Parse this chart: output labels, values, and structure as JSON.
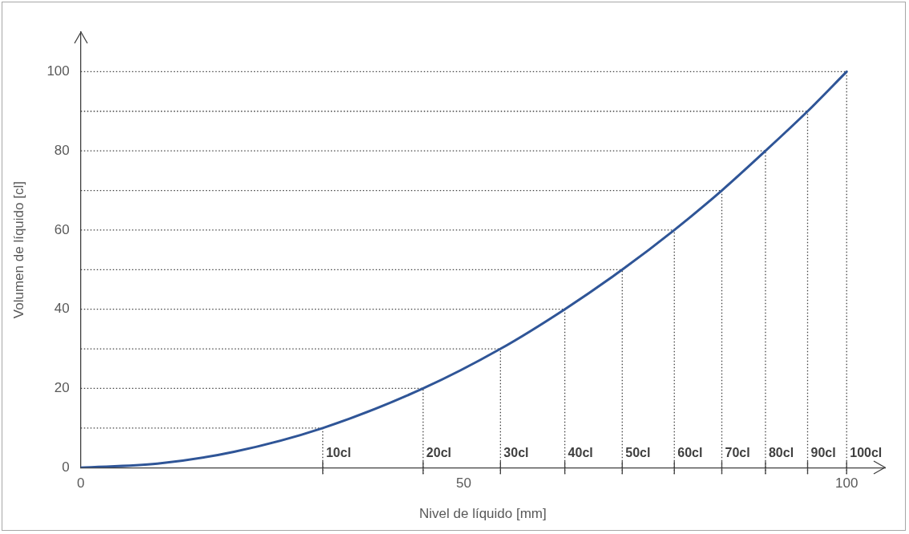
{
  "chart_data": {
    "type": "line",
    "xlabel": "Nivel de líquido [mm]",
    "ylabel": "Volumen de líquido [cl]",
    "x": [
      0,
      10,
      20,
      31.6,
      44.7,
      54.8,
      63.2,
      70.7,
      77.5,
      83.7,
      89.4,
      94.9,
      100
    ],
    "series": [
      {
        "color": "#2f5597",
        "values": [
          0,
          1,
          4,
          10,
          20,
          30,
          40,
          50,
          60,
          70,
          80,
          90,
          100
        ]
      }
    ],
    "xlim": [
      0,
      105
    ],
    "xticks": [
      0,
      50,
      100
    ],
    "ylim": [
      0,
      110
    ],
    "yticks": [
      0,
      20,
      40,
      60,
      80,
      100
    ],
    "grid": false,
    "legend": false,
    "marker": "none",
    "line_style": "solid",
    "ref_lines": [
      {
        "axis": "y",
        "value": 10,
        "color": "#404040",
        "line_style": "dotted"
      },
      {
        "axis": "y",
        "value": 20,
        "color": "#404040",
        "line_style": "dotted"
      },
      {
        "axis": "y",
        "value": 30,
        "color": "#404040",
        "line_style": "dotted"
      },
      {
        "axis": "y",
        "value": 40,
        "color": "#404040",
        "line_style": "dotted"
      },
      {
        "axis": "y",
        "value": 50,
        "color": "#404040",
        "line_style": "dotted"
      },
      {
        "axis": "y",
        "value": 60,
        "color": "#404040",
        "line_style": "dotted"
      },
      {
        "axis": "y",
        "value": 70,
        "color": "#404040",
        "line_style": "dotted"
      },
      {
        "axis": "y",
        "value": 80,
        "color": "#404040",
        "line_style": "dotted"
      },
      {
        "axis": "y",
        "value": 90,
        "color": "#404040",
        "line_style": "dotted"
      },
      {
        "axis": "y",
        "value": 100,
        "color": "#404040",
        "line_style": "dotted"
      },
      {
        "axis": "x",
        "value": 31.6,
        "label": "10cl",
        "color": "#404040",
        "line_style": "dotted"
      },
      {
        "axis": "x",
        "value": 44.7,
        "label": "20cl",
        "color": "#404040",
        "line_style": "dotted"
      },
      {
        "axis": "x",
        "value": 54.8,
        "label": "30cl",
        "color": "#404040",
        "line_style": "dotted"
      },
      {
        "axis": "x",
        "value": 63.2,
        "label": "40cl",
        "color": "#404040",
        "line_style": "dotted"
      },
      {
        "axis": "x",
        "value": 70.7,
        "label": "50cl",
        "color": "#404040",
        "line_style": "dotted"
      },
      {
        "axis": "x",
        "value": 77.5,
        "label": "60cl",
        "color": "#404040",
        "line_style": "dotted"
      },
      {
        "axis": "x",
        "value": 83.7,
        "label": "70cl",
        "color": "#404040",
        "line_style": "dotted"
      },
      {
        "axis": "x",
        "value": 89.4,
        "label": "80cl",
        "color": "#404040",
        "line_style": "dotted"
      },
      {
        "axis": "x",
        "value": 94.9,
        "label": "90cl",
        "color": "#404040",
        "line_style": "dotted"
      },
      {
        "axis": "x",
        "value": 100,
        "label": "100cl",
        "color": "#404040",
        "line_style": "dotted"
      }
    ]
  }
}
